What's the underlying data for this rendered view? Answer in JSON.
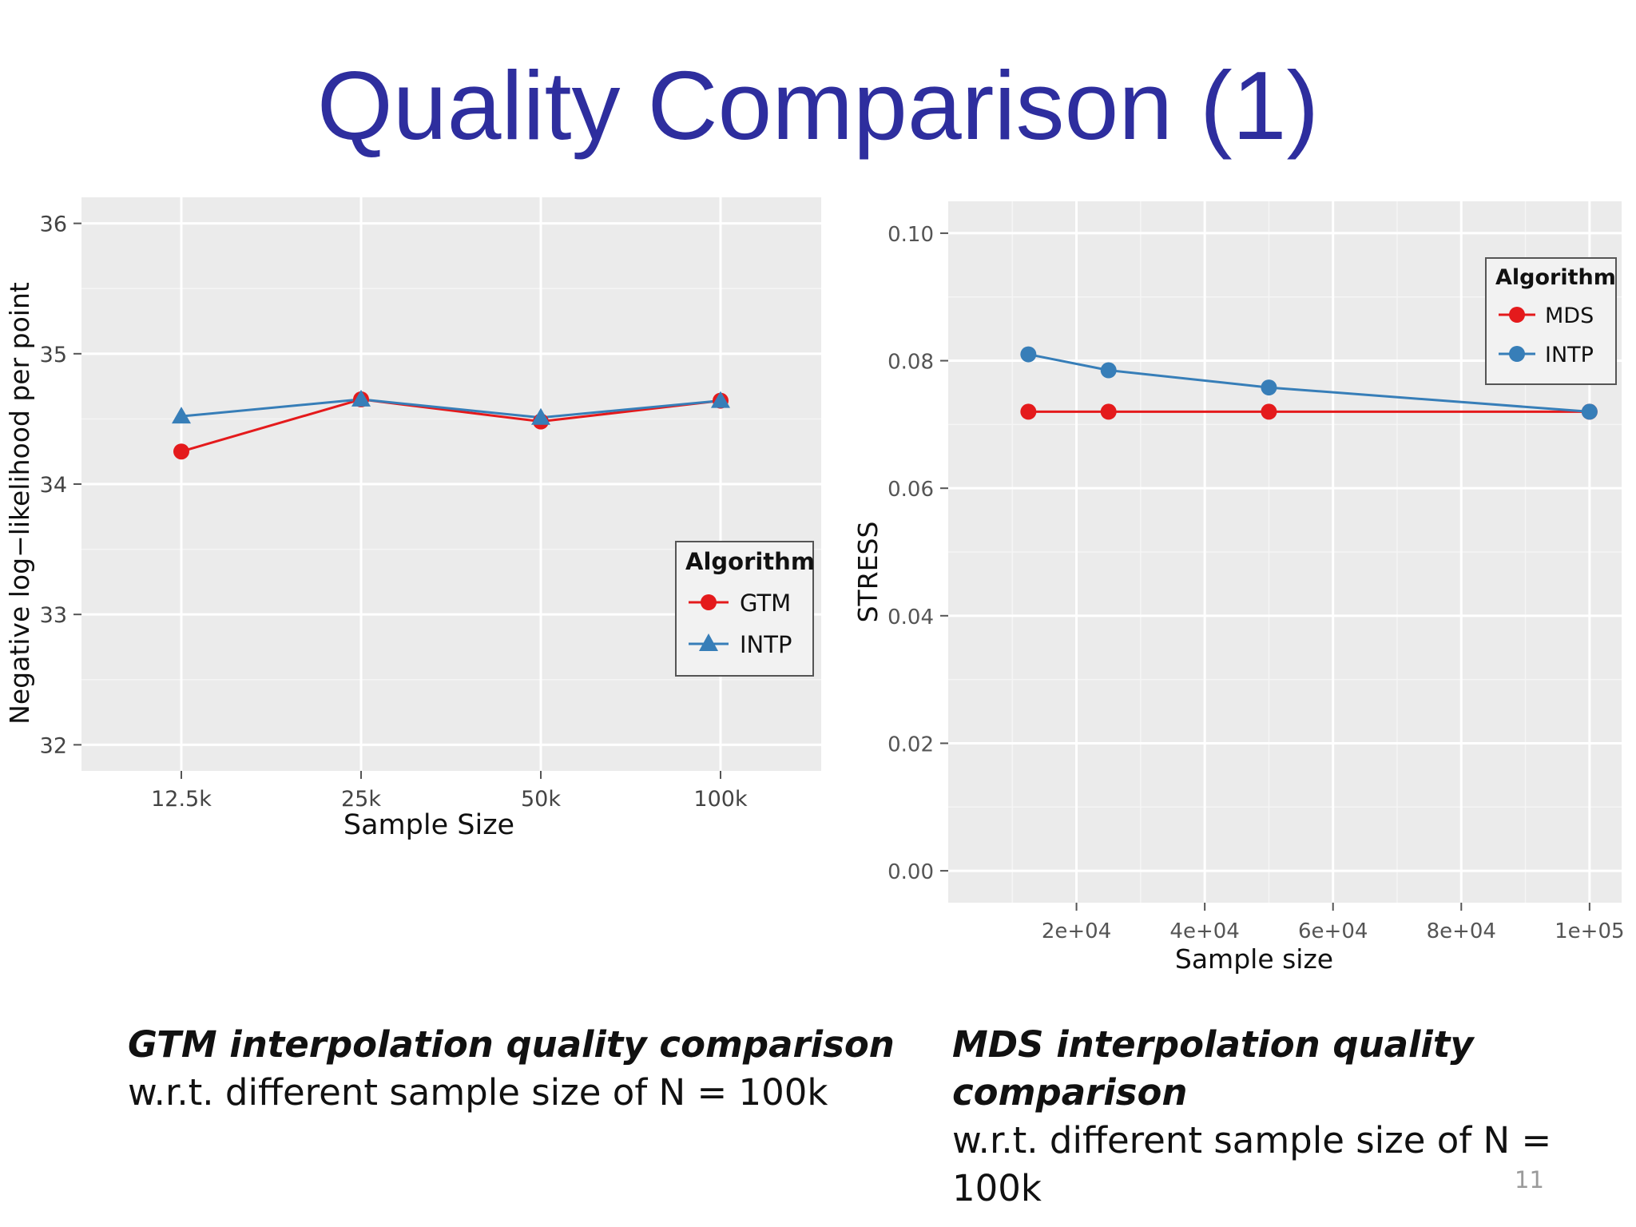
{
  "slide": {
    "title": "Quality Comparison (1)",
    "page_number": "11"
  },
  "captions": {
    "left": {
      "title": "GTM interpolation quality comparison",
      "subtitle": "w.r.t. different sample size of N = 100k"
    },
    "right": {
      "title": "MDS interpolation quality comparison",
      "subtitle": "w.r.t. different sample size of N = 100k"
    }
  },
  "colors": {
    "panel_bg": "#ebebeb",
    "grid": "#ffffff",
    "red": "#e41a1c",
    "blue": "#377eb8",
    "title": "#2e2e9e"
  },
  "chart_data": [
    {
      "type": "line",
      "xlabel": "Sample Size",
      "ylabel": "Negative log−likelihood per point",
      "categories": [
        "12.5k",
        "25k",
        "50k",
        "100k"
      ],
      "ylim": [
        31.8,
        36.2
      ],
      "yticks": [
        32,
        33,
        34,
        35,
        36
      ],
      "legend_title": "Algorithm",
      "legend_position": "right-middle",
      "grid": true,
      "series": [
        {
          "name": "GTM",
          "marker": "circle",
          "color": "#e41a1c",
          "values": [
            34.25,
            34.65,
            34.48,
            34.64
          ]
        },
        {
          "name": "INTP",
          "marker": "triangle",
          "color": "#377eb8",
          "values": [
            34.52,
            34.65,
            34.51,
            34.64
          ]
        }
      ]
    },
    {
      "type": "line",
      "xlabel": "Sample size",
      "ylabel": "STRESS",
      "x": [
        12500,
        25000,
        50000,
        100000
      ],
      "xlim": [
        0,
        105000
      ],
      "xticks": [
        20000,
        40000,
        60000,
        80000,
        100000
      ],
      "xtick_labels": [
        "2e+04",
        "4e+04",
        "6e+04",
        "8e+04",
        "1e+05"
      ],
      "ylim": [
        -0.005,
        0.105
      ],
      "yticks": [
        0,
        0.02,
        0.04,
        0.06,
        0.08,
        0.1
      ],
      "ytick_labels": [
        "0.00",
        "0.02",
        "0.04",
        "0.06",
        "0.08",
        "0.10"
      ],
      "legend_title": "Algorithm",
      "legend_position": "top-right",
      "grid": true,
      "series": [
        {
          "name": "MDS",
          "marker": "circle",
          "color": "#e41a1c",
          "values": [
            0.072,
            0.072,
            0.072,
            0.072
          ]
        },
        {
          "name": "INTP",
          "marker": "circle",
          "color": "#377eb8",
          "values": [
            0.081,
            0.0785,
            0.0758,
            0.072
          ]
        }
      ]
    }
  ]
}
